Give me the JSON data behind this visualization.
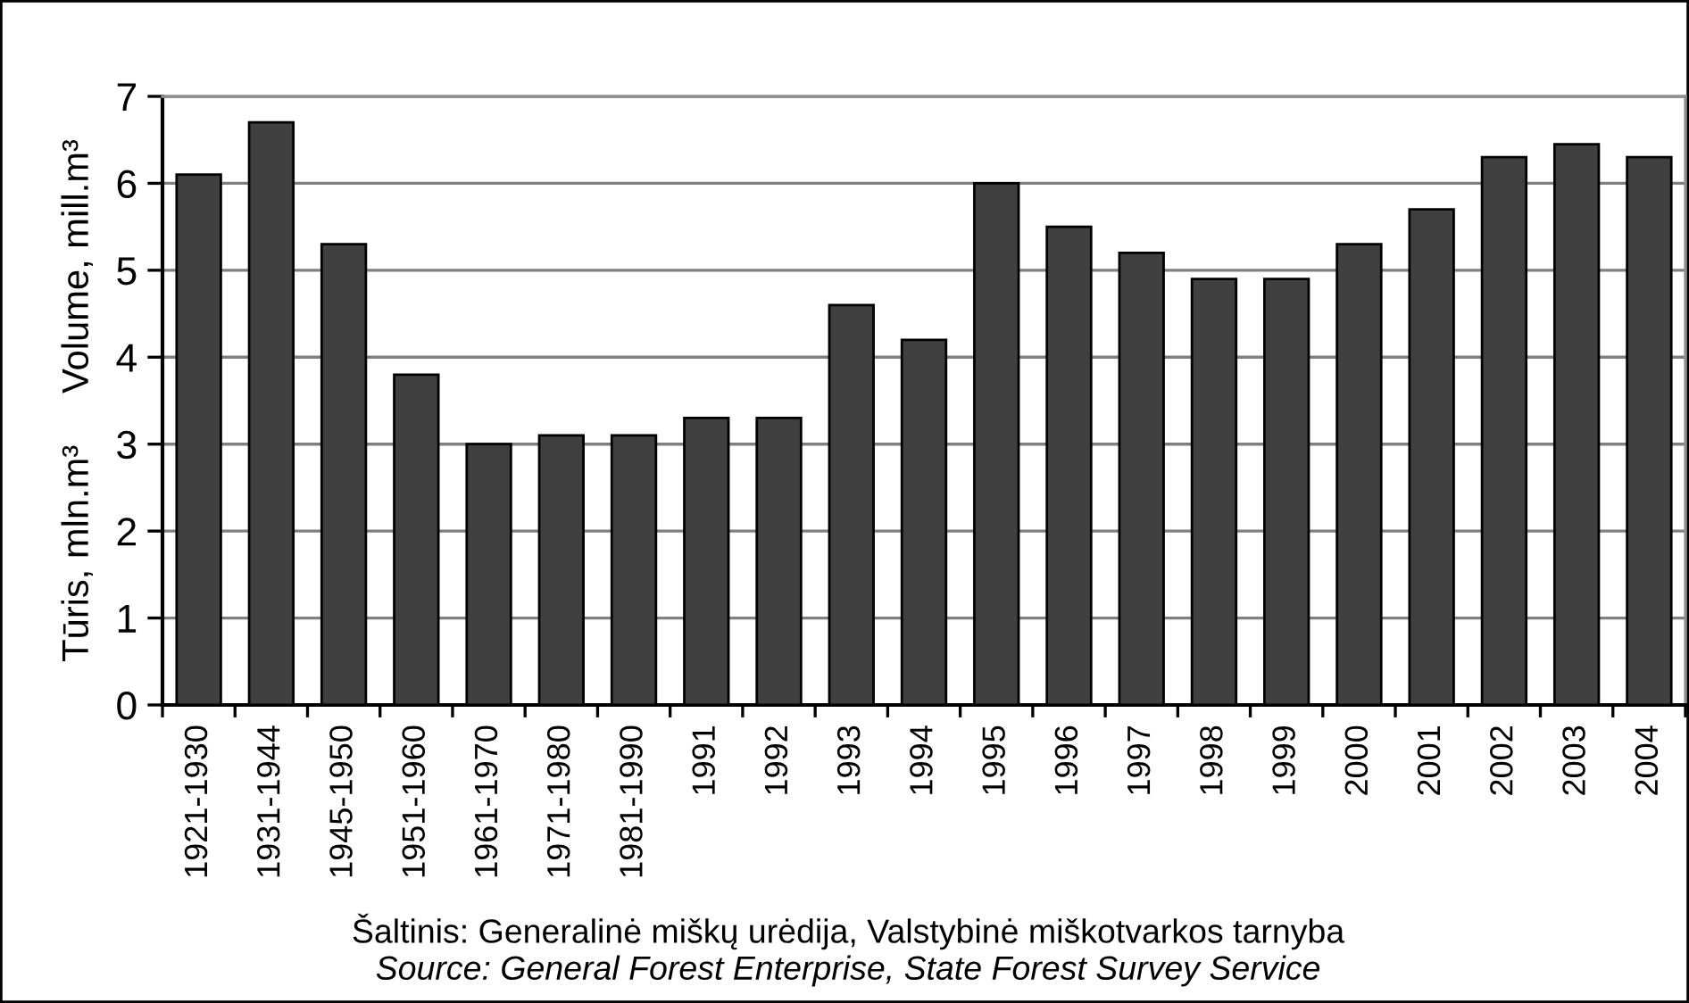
{
  "chart_data": {
    "type": "bar",
    "categories": [
      "1921-1930",
      "1931-1944",
      "1945-1950",
      "1951-1960",
      "1961-1970",
      "1971-1980",
      "1981-1990",
      "1991",
      "1992",
      "1993",
      "1994",
      "1995",
      "1996",
      "1997",
      "1998",
      "1999",
      "2000",
      "2001",
      "2002",
      "2003",
      "2004"
    ],
    "values": [
      6.1,
      6.7,
      5.3,
      3.8,
      3.0,
      3.1,
      3.1,
      3.3,
      3.3,
      4.6,
      4.2,
      6.0,
      5.5,
      5.2,
      4.9,
      4.9,
      5.3,
      5.7,
      6.3,
      6.45,
      6.3
    ],
    "color": "#404040",
    "ylabel": "Tūris, mln.m³     Volume, mill.m³",
    "ylim": [
      0,
      7
    ],
    "yticks": [
      0,
      1,
      2,
      3,
      4,
      5,
      6,
      7
    ],
    "grid": "y",
    "annotations": [
      "Šaltinis: Generalinė miškų urėdija, Valstybinė miškotvarkos tarnyba",
      "Source: General Forest Enterprise, State Forest Survey Service"
    ]
  }
}
